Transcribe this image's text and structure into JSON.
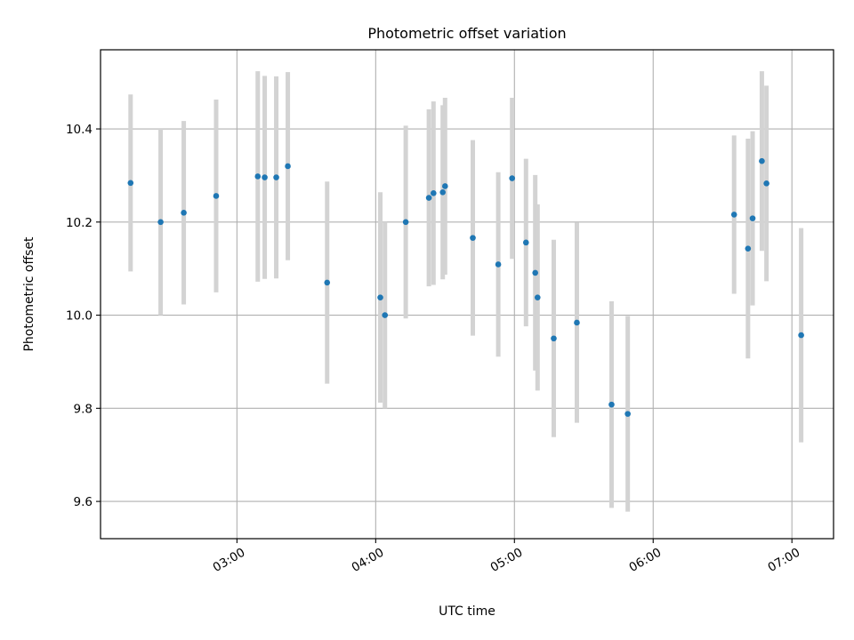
{
  "chart_data": {
    "type": "scatter",
    "title": "Photometric offset variation",
    "xlabel": "UTC time",
    "ylabel": "Photometric offset",
    "x_tick_labels": [
      "03:00",
      "04:00",
      "05:00",
      "06:00",
      "07:00"
    ],
    "y_tick_labels": [
      "9.6",
      "9.8",
      "10.0",
      "10.2",
      "10.4"
    ],
    "y_ticks": [
      9.6,
      9.8,
      10.0,
      10.2,
      10.4
    ],
    "xlim": [
      "02:01",
      "07:18"
    ],
    "ylim": [
      9.52,
      10.57
    ],
    "grid": true,
    "point_color": "#1f77b4",
    "errorbar_color": "#d3d3d3",
    "points": [
      {
        "x": "02:14",
        "y": 10.284,
        "yerr": 0.19
      },
      {
        "x": "02:27",
        "y": 10.2,
        "yerr": 0.2
      },
      {
        "x": "02:37",
        "y": 10.22,
        "yerr": 0.197
      },
      {
        "x": "02:51",
        "y": 10.256,
        "yerr": 0.207
      },
      {
        "x": "03:09",
        "y": 10.298,
        "yerr": 0.226
      },
      {
        "x": "03:12",
        "y": 10.296,
        "yerr": 0.218
      },
      {
        "x": "03:17",
        "y": 10.296,
        "yerr": 0.217
      },
      {
        "x": "03:22",
        "y": 10.32,
        "yerr": 0.202
      },
      {
        "x": "03:39",
        "y": 10.07,
        "yerr": 0.217
      },
      {
        "x": "04:02",
        "y": 10.038,
        "yerr": 0.226
      },
      {
        "x": "04:04",
        "y": 10.0,
        "yerr": 0.2
      },
      {
        "x": "04:13",
        "y": 10.2,
        "yerr": 0.207
      },
      {
        "x": "04:23",
        "y": 10.252,
        "yerr": 0.19
      },
      {
        "x": "04:25",
        "y": 10.262,
        "yerr": 0.197
      },
      {
        "x": "04:29",
        "y": 10.264,
        "yerr": 0.187
      },
      {
        "x": "04:30",
        "y": 10.277,
        "yerr": 0.19
      },
      {
        "x": "04:42",
        "y": 10.166,
        "yerr": 0.21
      },
      {
        "x": "04:53",
        "y": 10.109,
        "yerr": 0.198
      },
      {
        "x": "04:59",
        "y": 10.294,
        "yerr": 0.173
      },
      {
        "x": "05:05",
        "y": 10.156,
        "yerr": 0.18
      },
      {
        "x": "05:09",
        "y": 10.091,
        "yerr": 0.21
      },
      {
        "x": "05:10",
        "y": 10.038,
        "yerr": 0.2
      },
      {
        "x": "05:17",
        "y": 9.95,
        "yerr": 0.212
      },
      {
        "x": "05:27",
        "y": 9.984,
        "yerr": 0.215
      },
      {
        "x": "05:42",
        "y": 9.808,
        "yerr": 0.222
      },
      {
        "x": "05:49",
        "y": 9.788,
        "yerr": 0.21
      },
      {
        "x": "06:35",
        "y": 10.216,
        "yerr": 0.17
      },
      {
        "x": "06:41",
        "y": 10.143,
        "yerr": 0.236
      },
      {
        "x": "06:43",
        "y": 10.208,
        "yerr": 0.187
      },
      {
        "x": "06:47",
        "y": 10.331,
        "yerr": 0.193
      },
      {
        "x": "06:49",
        "y": 10.283,
        "yerr": 0.21
      },
      {
        "x": "07:04",
        "y": 9.957,
        "yerr": 0.23
      }
    ]
  }
}
